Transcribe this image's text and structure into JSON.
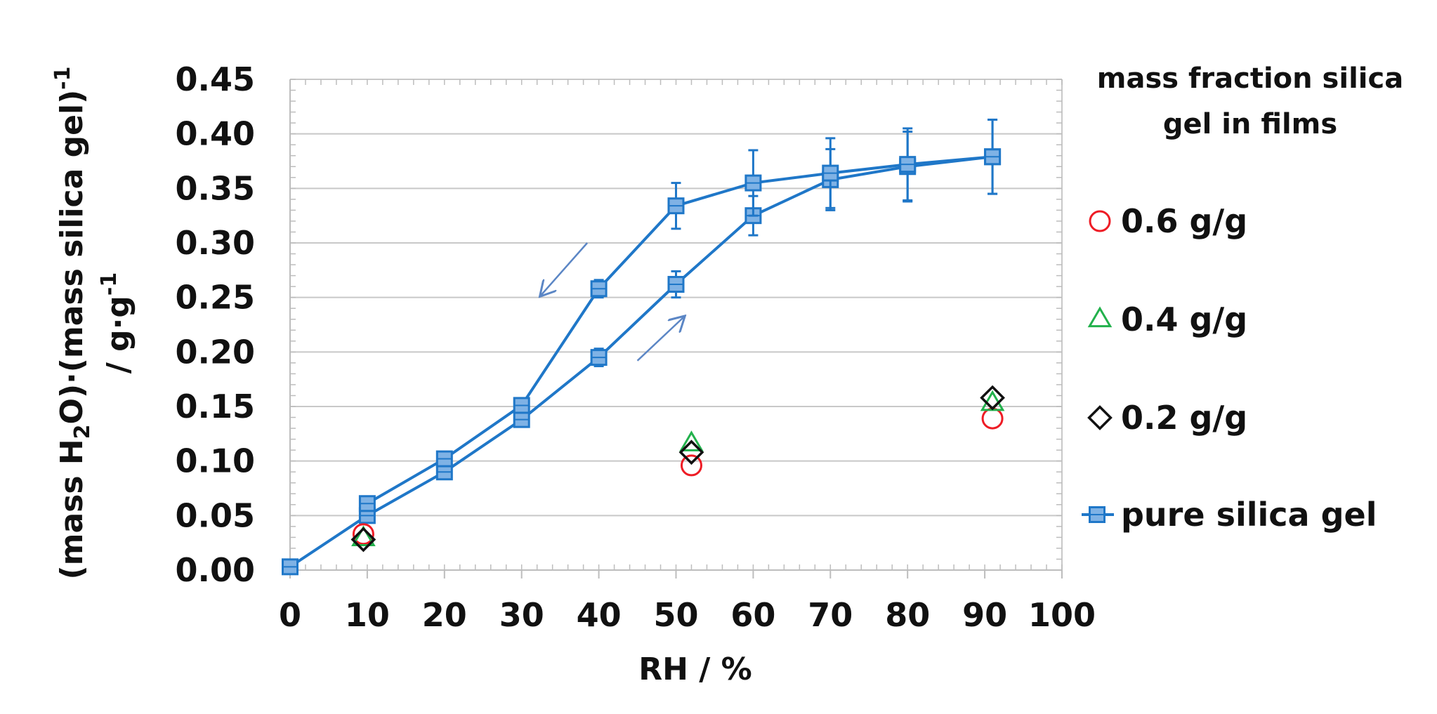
{
  "chart_data": {
    "type": "scatter",
    "xlabel": "RH / %",
    "ylabel": {
      "line1_pre": "(mass H",
      "line1_sub": "2",
      "line1_mid": "O)·(mass silica gel)",
      "line1_sup": "-1",
      "line2_pre": "/ g·g",
      "line2_sup": "-1"
    },
    "xlim": [
      0,
      100
    ],
    "ylim": [
      0,
      0.45
    ],
    "x_ticks": [
      0,
      10,
      20,
      30,
      40,
      50,
      60,
      70,
      80,
      90,
      100
    ],
    "x_tick_labels": [
      "0",
      "10",
      "20",
      "30",
      "40",
      "50",
      "60",
      "70",
      "80",
      "90",
      "100"
    ],
    "y_ticks": [
      0,
      0.05,
      0.1,
      0.15,
      0.2,
      0.25,
      0.3,
      0.35,
      0.4,
      0.45
    ],
    "y_tick_labels": [
      "0.00",
      "0.05",
      "0.10",
      "0.15",
      "0.20",
      "0.25",
      "0.30",
      "0.35",
      "0.40",
      "0.45"
    ],
    "grid": true,
    "legend_title": [
      "mass fraction silica",
      "gel in films"
    ],
    "series": [
      {
        "name": "0.6 g/g",
        "marker": "circle",
        "color": "#ee1c25",
        "line": false,
        "x": [
          9.5,
          52,
          91
        ],
        "y": [
          0.033,
          0.096,
          0.139
        ]
      },
      {
        "name": "0.4 g/g",
        "marker": "triangle",
        "color": "#22b14c",
        "line": false,
        "x": [
          9.5,
          52,
          91
        ],
        "y": [
          0.029,
          0.116,
          0.153
        ]
      },
      {
        "name": "0.2 g/g",
        "marker": "diamond",
        "color": "#111111",
        "line": false,
        "x": [
          9.5,
          52,
          91
        ],
        "y": [
          0.028,
          0.108,
          0.158
        ]
      },
      {
        "name": "pure silica gel",
        "marker": "square",
        "color": "#1f77c8",
        "line": true,
        "adsorption": {
          "x": [
            0,
            10,
            20,
            30,
            40,
            50,
            60,
            70,
            80,
            91
          ],
          "y": [
            0.003,
            0.05,
            0.09,
            0.138,
            0.195,
            0.262,
            0.325,
            0.358,
            0.37,
            0.379
          ],
          "err": [
            0,
            0.004,
            0.004,
            0.005,
            0.008,
            0.012,
            0.018,
            0.028,
            0.032,
            0.034
          ]
        },
        "desorption": {
          "x": [
            10,
            20,
            30,
            40,
            50,
            60,
            70,
            80,
            91
          ],
          "y": [
            0.061,
            0.102,
            0.151,
            0.258,
            0.334,
            0.355,
            0.364,
            0.372,
            0.379
          ],
          "err": [
            0.004,
            0.004,
            0.005,
            0.008,
            0.021,
            0.03,
            0.032,
            0.033,
            0.034
          ]
        }
      }
    ],
    "annotations": [
      {
        "type": "arrow",
        "meaning": "desorption",
        "from": [
          38.5,
          0.3
        ],
        "to": [
          32.5,
          0.252
        ]
      },
      {
        "type": "arrow",
        "meaning": "adsorption",
        "from": [
          45,
          0.192
        ],
        "to": [
          51,
          0.232
        ]
      }
    ]
  }
}
